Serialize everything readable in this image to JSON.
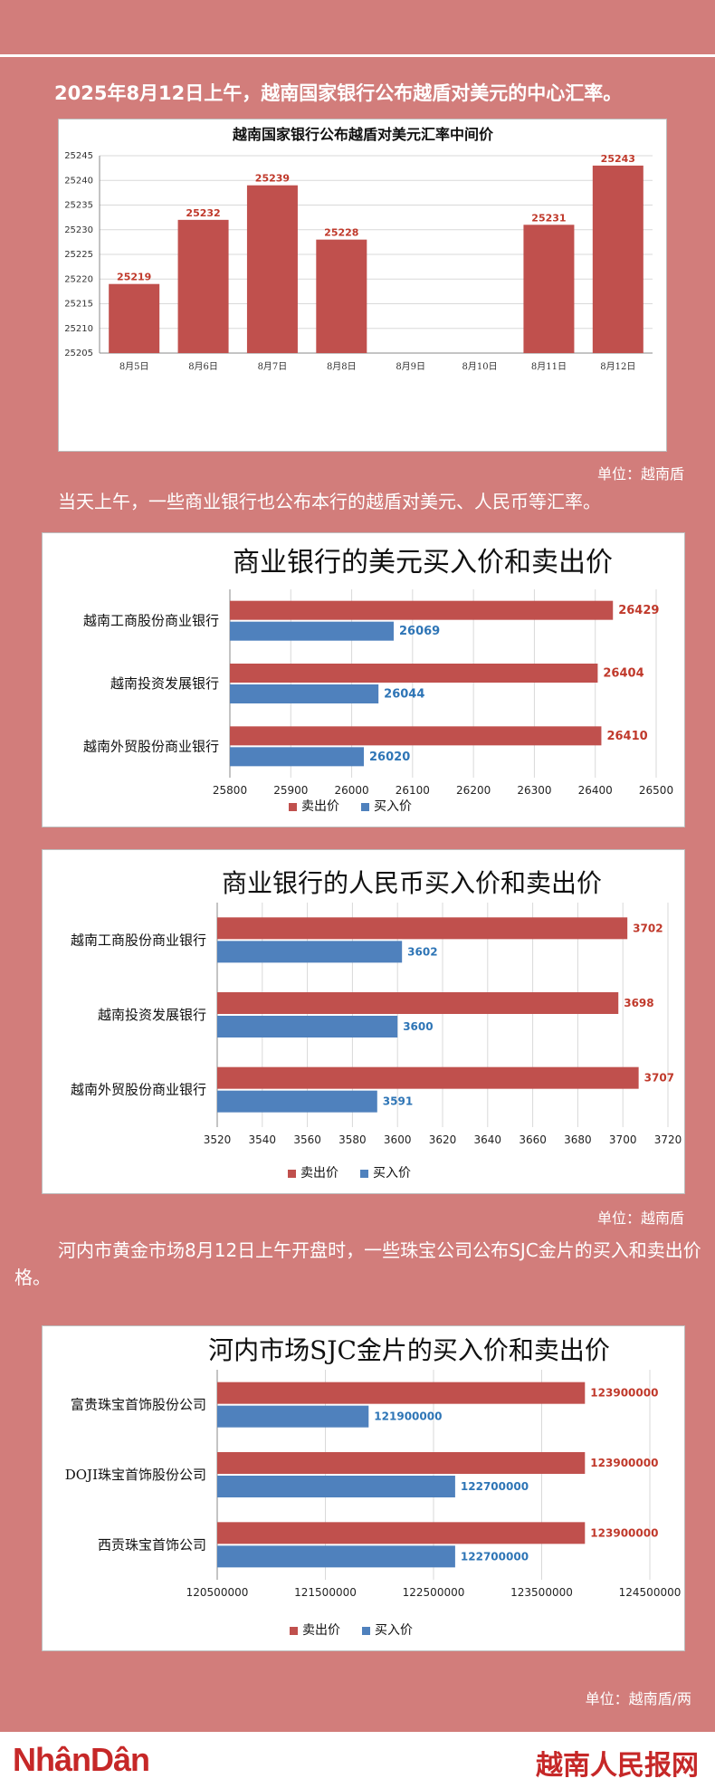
{
  "colors": {
    "background": "#d27d7b",
    "sell": "#c0504d",
    "buy": "#4f81bd",
    "sell_label": "#c0392b",
    "buy_label": "#2e75b6",
    "footer_red": "#c62828"
  },
  "texts": {
    "intro": "2025年8月12日上午，越南国家银行公布越盾对美元的中心汇率。",
    "unit1": "单位：越南盾",
    "intro2": "当天上午，一些商业银行也公布本行的越盾对美元、人民币等汇率。",
    "unit2": "单位：越南盾",
    "intro3": "河内市黄金市场8月12日上午开盘时，一些珠宝公司公布SJC金片的买入和卖出价格。",
    "unit3": "单位：越南盾/两"
  },
  "footer": {
    "left_logo": "NhânDân",
    "right_logo": "越南人民报网"
  },
  "chart_data": [
    {
      "type": "bar",
      "title": "越南国家银行公布越盾对美元汇率中间价",
      "categories": [
        "8月5日",
        "8月6日",
        "8月7日",
        "8月8日",
        "8月9日",
        "8月10日",
        "8月11日",
        "8月12日"
      ],
      "values": [
        25219,
        25232,
        25239,
        25228,
        null,
        null,
        25231,
        25243
      ],
      "ylim": [
        25205,
        25245
      ],
      "yticks": [
        25205,
        25210,
        25215,
        25220,
        25225,
        25230,
        25235,
        25240,
        25245
      ],
      "grid": true
    },
    {
      "type": "bar",
      "orientation": "horizontal",
      "title": "商业银行的美元买入价和卖出价",
      "categories": [
        "越南工商股份商业银行",
        "越南投资发展银行",
        "越南外贸股份商业银行"
      ],
      "series": [
        {
          "name": "卖出价",
          "values": [
            26429,
            26404,
            26410
          ]
        },
        {
          "name": "买入价",
          "values": [
            26069,
            26044,
            26020
          ]
        }
      ],
      "xlim": [
        25800,
        26500
      ],
      "xticks": [
        25800,
        25900,
        26000,
        26100,
        26200,
        26300,
        26400,
        26500
      ],
      "legend": "bottom",
      "grid": true
    },
    {
      "type": "bar",
      "orientation": "horizontal",
      "title": "商业银行的人民币买入价和卖出价",
      "categories": [
        "越南工商股份商业银行",
        "越南投资发展银行",
        "越南外贸股份商业银行"
      ],
      "series": [
        {
          "name": "卖出价",
          "values": [
            3702,
            3698,
            3707
          ]
        },
        {
          "name": "买入价",
          "values": [
            3602,
            3600,
            3591
          ]
        }
      ],
      "xlim": [
        3520,
        3720
      ],
      "xticks": [
        3520,
        3540,
        3560,
        3580,
        3600,
        3620,
        3640,
        3660,
        3680,
        3700,
        3720
      ],
      "legend": "bottom",
      "grid": true
    },
    {
      "type": "bar",
      "orientation": "horizontal",
      "title": "河内市场SJC金片的买入价和卖出价",
      "categories": [
        "富贵珠宝首饰股份公司",
        "DOJI珠宝首饰股份公司",
        "西贡珠宝首饰公司"
      ],
      "series": [
        {
          "name": "卖出价",
          "values": [
            123900000,
            123900000,
            123900000
          ]
        },
        {
          "name": "买入价",
          "values": [
            121900000,
            122700000,
            122700000
          ]
        }
      ],
      "xlim": [
        120500000,
        124500000
      ],
      "xticks": [
        120500000,
        121500000,
        122500000,
        123500000,
        124500000
      ],
      "legend": "bottom",
      "grid": true
    }
  ]
}
